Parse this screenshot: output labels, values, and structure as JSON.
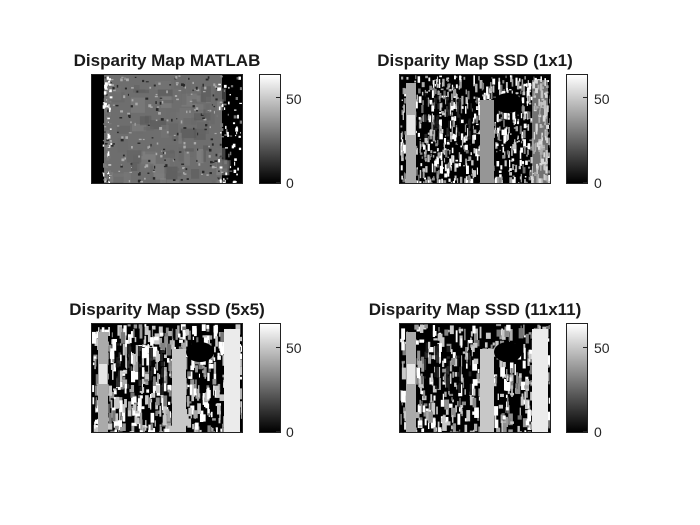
{
  "figure": {
    "panels": [
      {
        "title": "Disparity Map MATLAB",
        "colorbar_ticks": [
          "50",
          "0"
        ],
        "style": "matlab"
      },
      {
        "title": "Disparity Map SSD (1x1)",
        "colorbar_ticks": [
          "50",
          "0"
        ],
        "style": "noisy"
      },
      {
        "title": "Disparity Map SSD (5x5)",
        "colorbar_ticks": [
          "50",
          "0"
        ],
        "style": "medium"
      },
      {
        "title": "Disparity Map SSD (11x11)",
        "colorbar_ticks": [
          "50",
          "0"
        ],
        "style": "smooth"
      }
    ],
    "colormap": "gray"
  }
}
